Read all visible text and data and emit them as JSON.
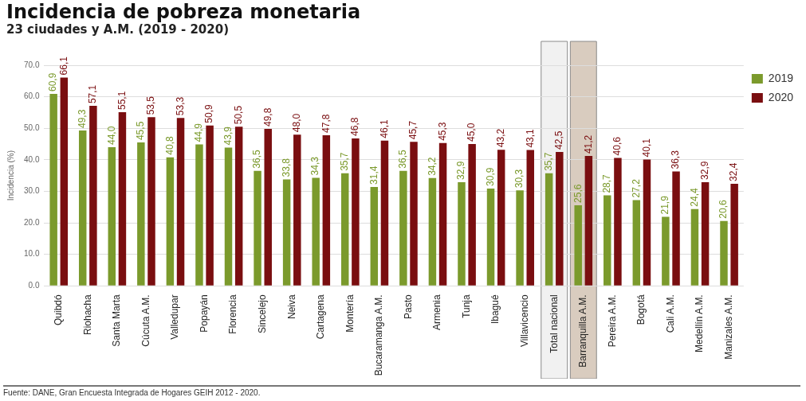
{
  "chart_data": {
    "type": "bar",
    "title": "Incidencia de pobreza monetaria",
    "subtitle": "23 ciudades y A.M. (2019 - 2020)",
    "ylabel": "Incidencia (%)",
    "categories": [
      "Quibdó",
      "Riohacha",
      "Santa Marta",
      "Cúcuta A.M.",
      "Valledupar",
      "Popayán",
      "Florencia",
      "Sincelejo",
      "Neiva",
      "Cartagena",
      "Montería",
      "Bucaramanga A.M.",
      "Pasto",
      "Armenia",
      "Tunja",
      "Ibagué",
      "Villavicencio",
      "Total nacional",
      "Barranquilla A.M.",
      "Pereira A.M.",
      "Bogotá",
      "Cali A.M.",
      "Medellín A.M.",
      "Manizales A.M."
    ],
    "series": [
      {
        "name": "2019",
        "color": "#7b9a2c",
        "values": [
          60.9,
          49.3,
          44.0,
          45.5,
          40.8,
          44.9,
          43.9,
          36.5,
          33.8,
          34.3,
          35.7,
          31.4,
          36.5,
          34.2,
          32.9,
          30.9,
          30.3,
          35.7,
          25.6,
          28.7,
          27.2,
          21.9,
          24.4,
          20.6
        ],
        "value_labels": [
          "60,9",
          "49,3",
          "44,0",
          "45,5",
          "40,8",
          "44,9",
          "43,9",
          "36,5",
          "33,8",
          "34,3",
          "35,7",
          "31,4",
          "36,5",
          "34,2",
          "32,9",
          "30,9",
          "30,3",
          "35,7",
          "25,6",
          "28,7",
          "27,2",
          "21,9",
          "24,4",
          "20,6"
        ]
      },
      {
        "name": "2020",
        "color": "#7a0e10",
        "values": [
          66.1,
          57.1,
          55.1,
          53.5,
          53.3,
          50.9,
          50.5,
          49.8,
          48.0,
          47.8,
          46.8,
          46.1,
          45.7,
          45.3,
          45.0,
          43.2,
          43.1,
          42.5,
          41.2,
          40.6,
          40.1,
          36.3,
          32.9,
          32.4
        ],
        "value_labels": [
          "66,1",
          "57,1",
          "55,1",
          "53,5",
          "53,3",
          "50,9",
          "50,5",
          "49,8",
          "48,0",
          "47,8",
          "46,8",
          "46,1",
          "45,7",
          "45,3",
          "45,0",
          "43,2",
          "43,1",
          "42,5",
          "41,2",
          "40,6",
          "40,1",
          "36,3",
          "32,9",
          "32,4"
        ]
      }
    ],
    "ylim": [
      0,
      70
    ],
    "yticks": [
      {
        "value": 0,
        "label": "0.0"
      },
      {
        "value": 10,
        "label": "10.0"
      },
      {
        "value": 20,
        "label": "20.0"
      },
      {
        "value": 30,
        "label": "30.0"
      },
      {
        "value": 40,
        "label": "40.0"
      },
      {
        "value": 50,
        "label": "50.0"
      },
      {
        "value": 60,
        "label": "60.0"
      },
      {
        "value": 70,
        "label": "70.0"
      }
    ],
    "bands": [
      {
        "axis": "x",
        "from": "Total nacional",
        "to": "Total nacional",
        "color": "#f1f1f1"
      },
      {
        "axis": "x",
        "from": "Barranquilla A.M.",
        "to": "Barranquilla A.M.",
        "color": "#d9ccbf"
      }
    ],
    "grid": "y",
    "legend": "right",
    "annotations": [
      "Fuente: DANE, Gran Encuesta Integrada de Hogares GEIH 2012 - 2020."
    ]
  }
}
